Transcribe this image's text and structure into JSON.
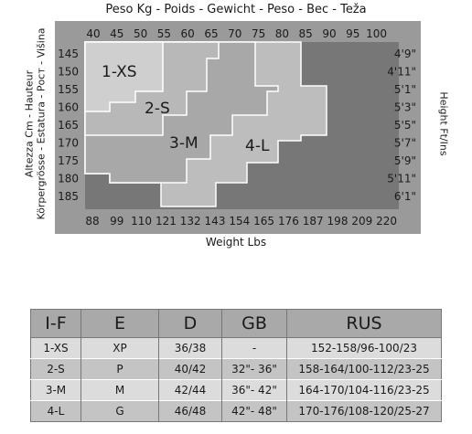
{
  "chart": {
    "top_title": "Peso Kg - Poids - Gewicht - Peso - Bec - Teža",
    "bottom_title": "Weight Lbs",
    "left_title_line1": "Altezza Cm - Hauteur",
    "left_title_line2": "Körpergrösse - Estatura - Рост - Višina",
    "right_title": "Height Ft/Ins",
    "kg_ticks": [
      "40",
      "45",
      "50",
      "55",
      "60",
      "65",
      "70",
      "75",
      "80",
      "85",
      "90",
      "95",
      "100"
    ],
    "lbs_ticks": [
      "88",
      "99",
      "110",
      "121",
      "132",
      "143",
      "154",
      "165",
      "176",
      "187",
      "198",
      "209",
      "220"
    ],
    "cm_ticks": [
      "145",
      "150",
      "155",
      "160",
      "165",
      "170",
      "175",
      "180",
      "185"
    ],
    "ft_ticks": [
      "4'9\"",
      "4'11\"",
      "5'1\"",
      "5'3\"",
      "5'5\"",
      "5'7\"",
      "5'9\"",
      "5'11\"",
      "6'1\""
    ],
    "size_zones": [
      "1-XS",
      "2-S",
      "3-M",
      "4-L"
    ],
    "colors": {
      "frame": "#9a9a9a",
      "chart_bg": "#777777",
      "zone_xs": "#cfcfcf",
      "zone_s": "#b8b8b8",
      "zone_m": "#a8a8a8",
      "zone_l": "#bdbdbd",
      "table_header": "#a9a9a9"
    }
  },
  "table": {
    "headers": [
      "I-F",
      "E",
      "D",
      "GB",
      "RUS"
    ],
    "rows": [
      [
        "1-XS",
        "XP",
        "36/38",
        "-",
        "152-158/96-100/23"
      ],
      [
        "2-S",
        "P",
        "40/42",
        "32\"- 36\"",
        "158-164/100-112/23-25"
      ],
      [
        "3-M",
        "M",
        "42/44",
        "36\"- 42\"",
        "164-170/104-116/23-25"
      ],
      [
        "4-L",
        "G",
        "46/48",
        "42\"- 48\"",
        "170-176/108-120/25-27"
      ]
    ]
  }
}
